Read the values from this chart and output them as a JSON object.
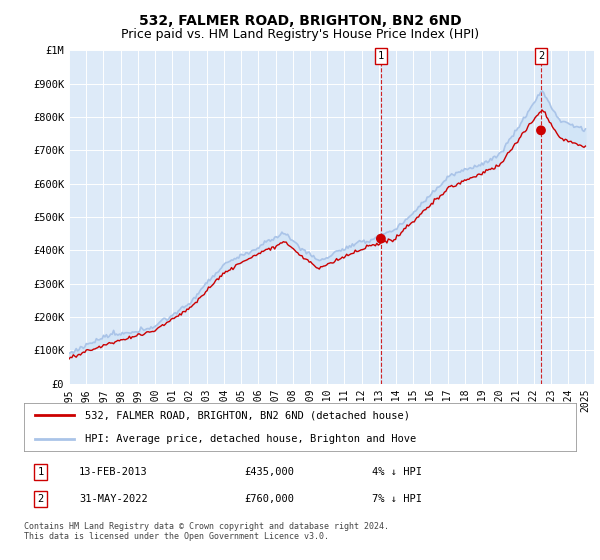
{
  "title": "532, FALMER ROAD, BRIGHTON, BN2 6ND",
  "subtitle": "Price paid vs. HM Land Registry's House Price Index (HPI)",
  "ylim": [
    0,
    1000000
  ],
  "yticks": [
    0,
    100000,
    200000,
    300000,
    400000,
    500000,
    600000,
    700000,
    800000,
    900000,
    1000000
  ],
  "ytick_labels": [
    "£0",
    "£100K",
    "£200K",
    "£300K",
    "£400K",
    "£500K",
    "£600K",
    "£700K",
    "£800K",
    "£900K",
    "£1M"
  ],
  "hpi_color": "#aac4e8",
  "hpi_fill_color": "#d0e4f7",
  "price_color": "#cc0000",
  "vline_color": "#cc0000",
  "sale1_date": 2013.12,
  "sale1_price": 435000,
  "sale2_date": 2022.42,
  "sale2_price": 760000,
  "plot_bg_color": "#ddeaf8",
  "legend_entry1": "532, FALMER ROAD, BRIGHTON, BN2 6ND (detached house)",
  "legend_entry2": "HPI: Average price, detached house, Brighton and Hove",
  "table_row1": [
    "1",
    "13-FEB-2013",
    "£435,000",
    "4% ↓ HPI"
  ],
  "table_row2": [
    "2",
    "31-MAY-2022",
    "£760,000",
    "7% ↓ HPI"
  ],
  "footnote": "Contains HM Land Registry data © Crown copyright and database right 2024.\nThis data is licensed under the Open Government Licence v3.0.",
  "title_fontsize": 10,
  "subtitle_fontsize": 9
}
